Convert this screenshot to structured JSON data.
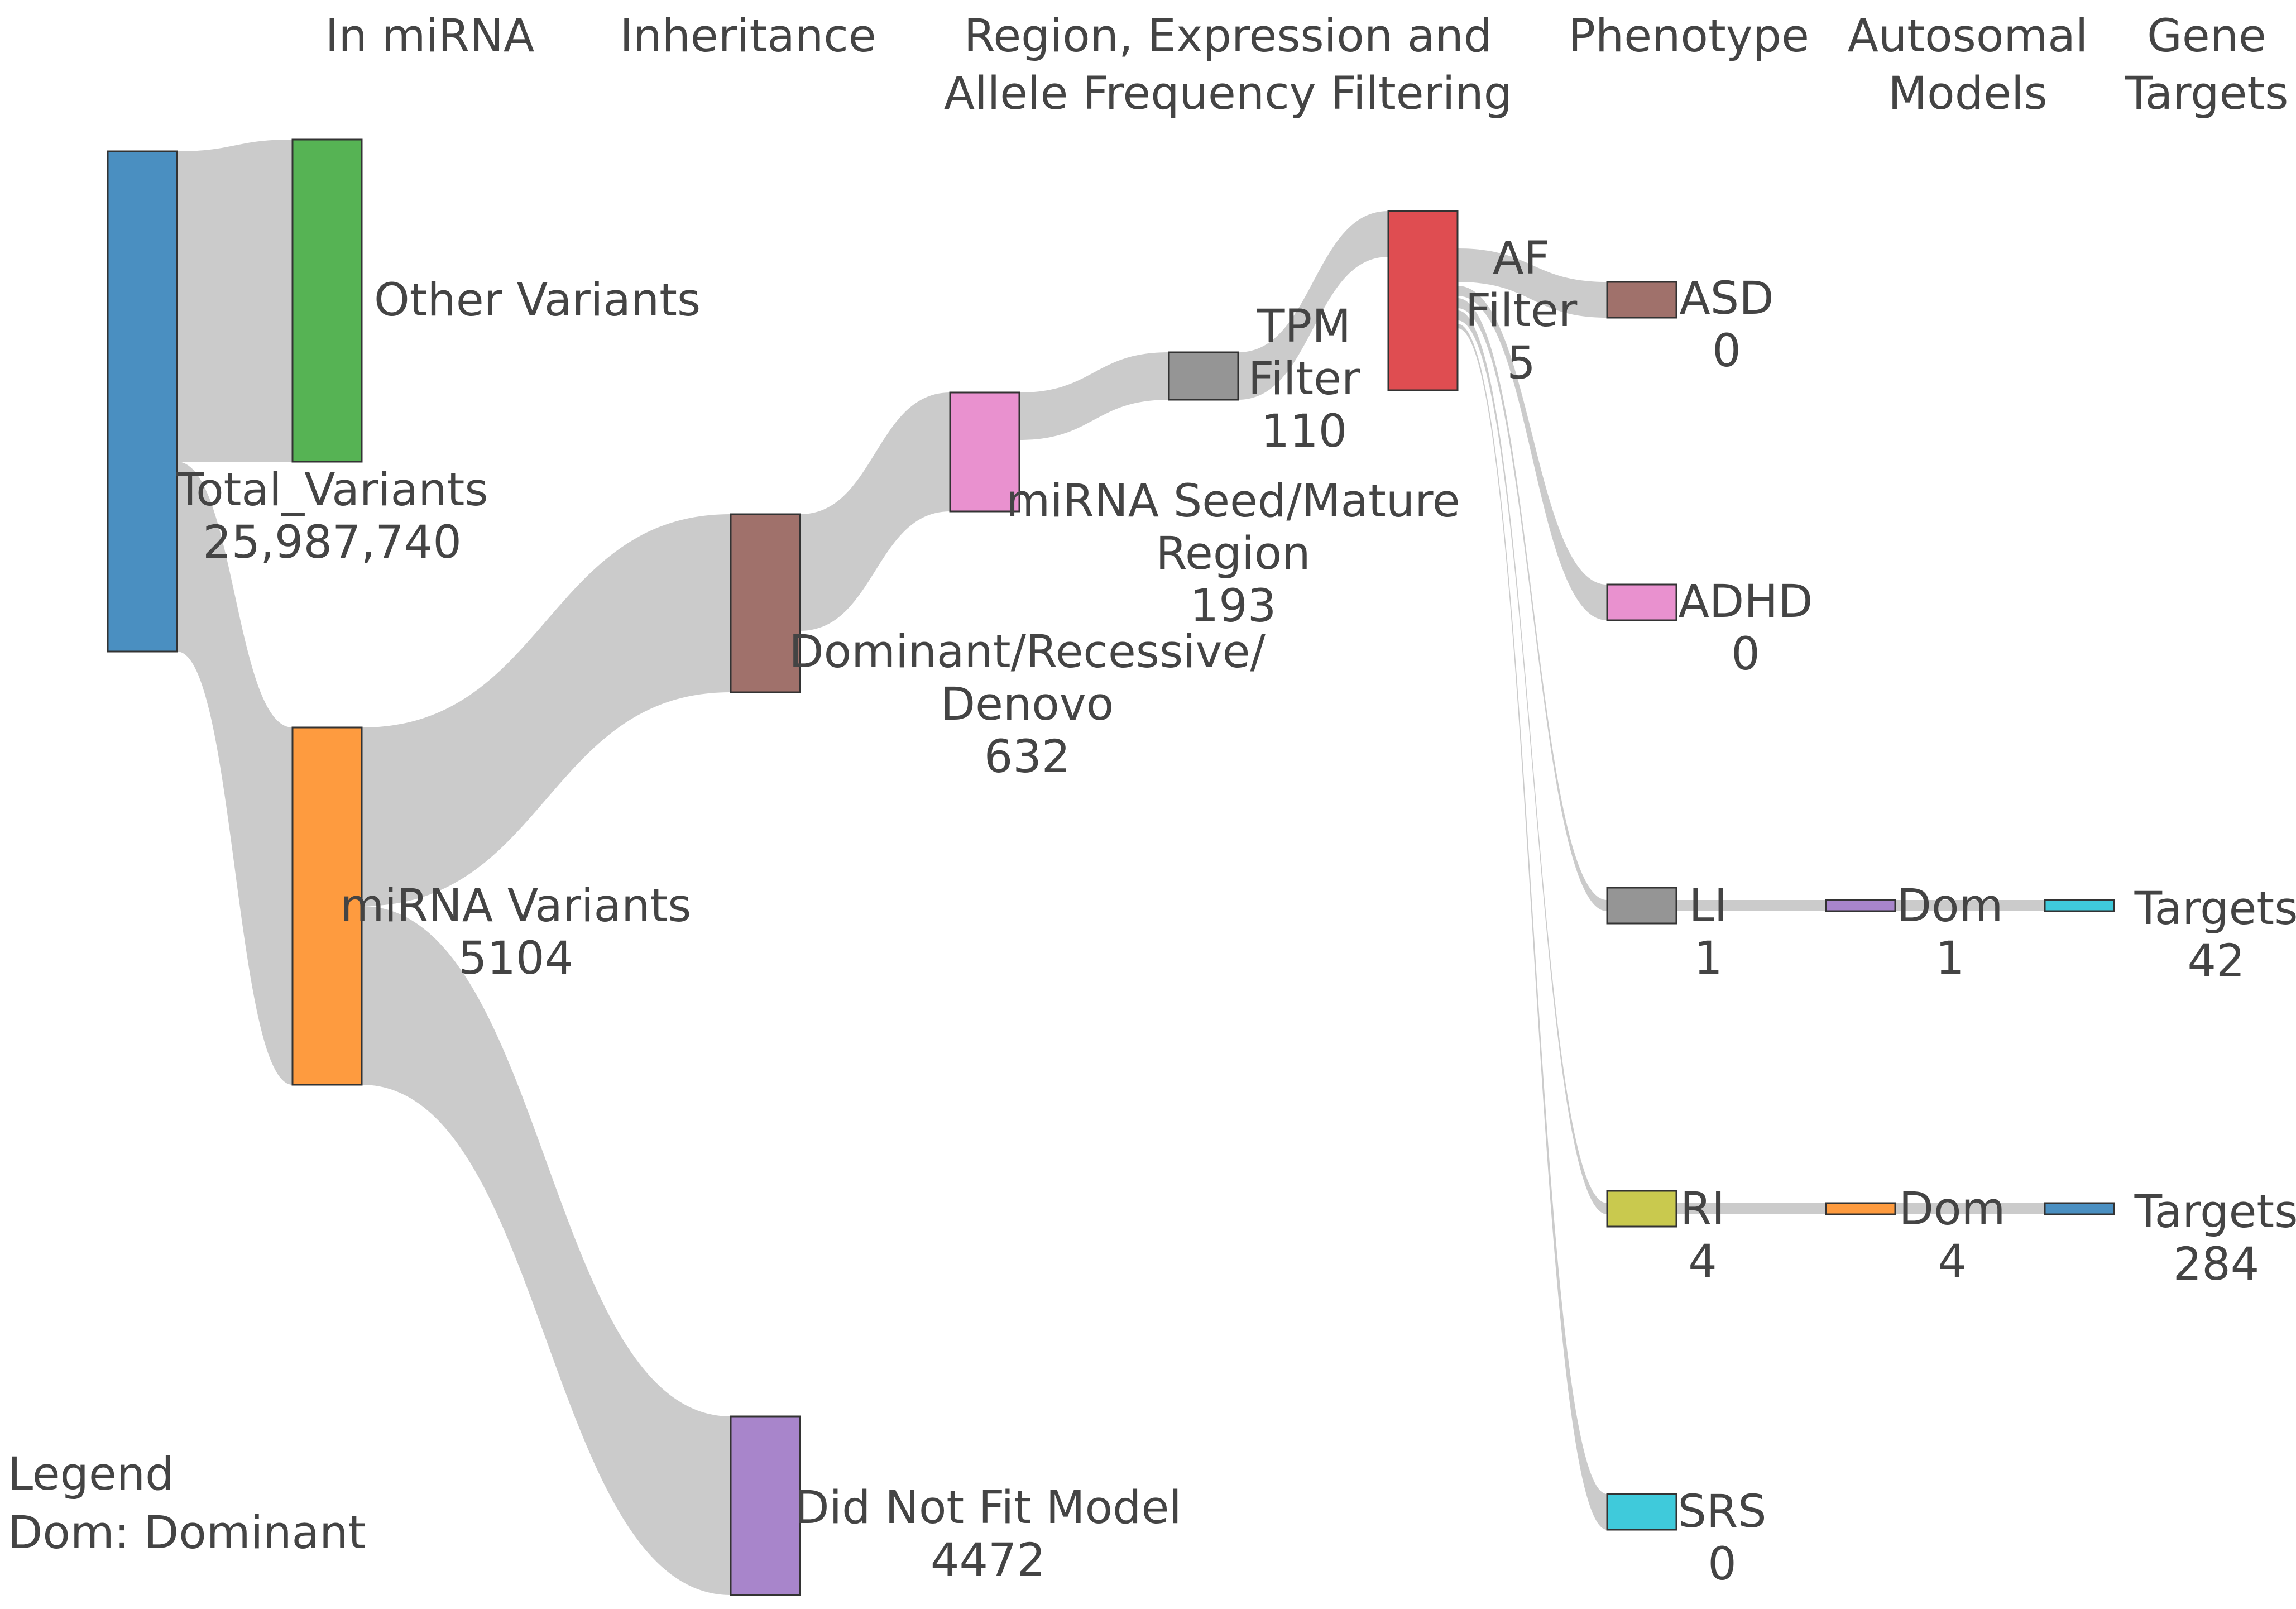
{
  "stage_headers": [
    {
      "lines": [
        "In miRNA"
      ]
    },
    {
      "lines": [
        "Inheritance"
      ]
    },
    {
      "lines": [
        "Region, Expression and",
        "Allele Frequency Filtering"
      ]
    },
    {
      "lines": [
        "Phenotype"
      ]
    },
    {
      "lines": [
        "Autosomal",
        "Models"
      ]
    },
    {
      "lines": [
        "Gene",
        "Targets"
      ]
    }
  ],
  "nodes": [
    {
      "id": "total",
      "name": "Total_Variants",
      "value": "25,987,740",
      "color": "#4a8fc1"
    },
    {
      "id": "other",
      "name": "Other Variants",
      "value": "",
      "color": "#56b354"
    },
    {
      "id": "mirna",
      "name": "miRNA Variants",
      "value": "5104",
      "color": "#fe9b3f"
    },
    {
      "id": "domrec",
      "name": "Dominant/Recessive/ Denovo",
      "value": "632",
      "color": "#a0716b"
    },
    {
      "id": "notfit",
      "name": "Did Not Fit Model",
      "value": "4472",
      "color": "#a885cb"
    },
    {
      "id": "seed",
      "name": "miRNA Seed/Mature Region",
      "value": "193",
      "color": "#e991cf"
    },
    {
      "id": "tpm",
      "name": "TPM Filter",
      "value": "110",
      "color": "#959595"
    },
    {
      "id": "af",
      "name": "AF Filter",
      "value": "5",
      "color": "#df4d51"
    },
    {
      "id": "asd",
      "name": "ASD",
      "value": "0",
      "color": "#a0716b"
    },
    {
      "id": "adhd",
      "name": "ADHD",
      "value": "0",
      "color": "#e991cf"
    },
    {
      "id": "li",
      "name": "LI",
      "value": "1",
      "color": "#959595"
    },
    {
      "id": "ri",
      "name": "RI",
      "value": "4",
      "color": "#c9c94e"
    },
    {
      "id": "srs",
      "name": "SRS",
      "value": "0",
      "color": "#3fcadb"
    },
    {
      "id": "dom_li",
      "name": "Dom",
      "value": "1",
      "color": "#a885cb"
    },
    {
      "id": "dom_ri",
      "name": "Dom",
      "value": "4",
      "color": "#fe9b3f"
    },
    {
      "id": "targets_li",
      "name": "Targets",
      "value": "42",
      "color": "#3fcadb"
    },
    {
      "id": "targets_ri",
      "name": "Targets",
      "value": "284",
      "color": "#4a8fc1"
    }
  ],
  "links": [
    {
      "source": "total",
      "target": "other"
    },
    {
      "source": "total",
      "target": "mirna",
      "value": 5104
    },
    {
      "source": "mirna",
      "target": "domrec",
      "value": 632
    },
    {
      "source": "mirna",
      "target": "notfit",
      "value": 4472
    },
    {
      "source": "domrec",
      "target": "seed",
      "value": 193
    },
    {
      "source": "seed",
      "target": "tpm",
      "value": 110
    },
    {
      "source": "tpm",
      "target": "af",
      "value": 5
    },
    {
      "source": "af",
      "target": "asd",
      "value": 0
    },
    {
      "source": "af",
      "target": "adhd",
      "value": 0
    },
    {
      "source": "af",
      "target": "li",
      "value": 1
    },
    {
      "source": "af",
      "target": "ri",
      "value": 4
    },
    {
      "source": "af",
      "target": "srs",
      "value": 0
    },
    {
      "source": "li",
      "target": "dom_li",
      "value": 1
    },
    {
      "source": "ri",
      "target": "dom_ri",
      "value": 4
    },
    {
      "source": "dom_li",
      "target": "targets_li",
      "value": 42
    },
    {
      "source": "dom_ri",
      "target": "targets_ri",
      "value": 284
    }
  ],
  "legend": {
    "title": "Legend",
    "entry": "Dom: Dominant"
  },
  "link_color": "#c8c8c8"
}
